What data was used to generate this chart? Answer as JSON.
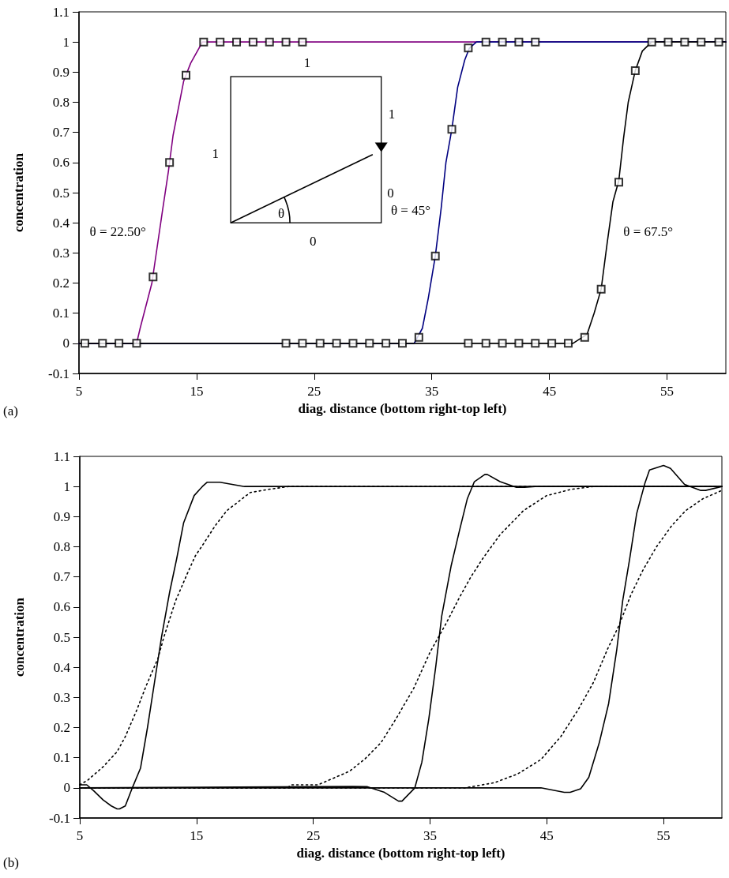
{
  "chart_data": [
    {
      "type": "line",
      "xlabel": "diag. distance (bottom right-top left)",
      "ylabel": "concentration",
      "xlim": [
        5,
        60
      ],
      "xticks": [
        5,
        15,
        25,
        35,
        45,
        55
      ],
      "ylim": [
        -0.1,
        1.1
      ],
      "yticks": [
        -0.1,
        0,
        0.1,
        0.2,
        0.3,
        0.4,
        0.5,
        0.6,
        0.7,
        0.8,
        0.9,
        1,
        1.1
      ],
      "annotations": [
        "θ = 22.50°",
        "θ = 45°",
        "θ = 67.5°",
        "1",
        "1",
        "1",
        "0",
        "0",
        "θ",
        "(a)"
      ],
      "series": [
        {
          "color": "#800080",
          "marker": "none",
          "line_style": "solid",
          "x": [
            5,
            9.9,
            10.2,
            11.2,
            12.1,
            12.6,
            13.0,
            13.9,
            14.5,
            15.5,
            60
          ],
          "values": [
            0,
            0,
            0.05,
            0.2,
            0.44,
            0.57,
            0.69,
            0.87,
            0.93,
            1,
            1
          ]
        },
        {
          "color": "#000080",
          "marker": "none",
          "line_style": "solid",
          "x": [
            5,
            33.5,
            34.2,
            34.7,
            35.3,
            35.8,
            36.2,
            36.7,
            37.2,
            37.8,
            38.2,
            38.8,
            60
          ],
          "values": [
            0,
            0,
            0.05,
            0.15,
            0.29,
            0.45,
            0.6,
            0.71,
            0.85,
            0.94,
            0.98,
            1,
            1
          ]
        },
        {
          "color": "#000000",
          "marker": "none",
          "line_style": "solid",
          "x": [
            5,
            47,
            48.2,
            48.8,
            49.4,
            49.9,
            50.4,
            50.9,
            51.3,
            51.7,
            52.3,
            52.9,
            53.7,
            60
          ],
          "values": [
            0,
            0,
            0.03,
            0.1,
            0.18,
            0.33,
            0.47,
            0.54,
            0.68,
            0.8,
            0.905,
            0.97,
            1,
            1
          ]
        },
        {
          "type": "scatter",
          "color": "#000000",
          "marker": "square",
          "x": [
            5.5,
            7.0,
            8.4,
            9.9,
            11.3,
            12.7,
            14.1,
            15.6,
            17.0,
            18.4,
            19.8,
            21.2,
            22.6,
            24.0
          ],
          "values": [
            0,
            0,
            0,
            0,
            0.22,
            0.6,
            0.89,
            1,
            1,
            1,
            1,
            1,
            1,
            1
          ]
        },
        {
          "type": "scatter",
          "color": "#000000",
          "marker": "square",
          "x": [
            22.6,
            24.0,
            25.5,
            26.9,
            28.3,
            29.7,
            31.1,
            32.5,
            33.9,
            35.3,
            36.7,
            38.1,
            39.6,
            41.0,
            42.4,
            43.8
          ],
          "values": [
            0,
            0,
            0,
            0,
            0,
            0,
            0,
            0,
            0.02,
            0.29,
            0.71,
            0.98,
            1,
            1,
            1,
            1
          ]
        },
        {
          "type": "scatter",
          "color": "#000000",
          "marker": "square",
          "x": [
            38.1,
            39.6,
            41.0,
            42.4,
            43.8,
            45.2,
            46.6,
            48.0,
            49.4,
            50.9,
            52.3,
            53.7,
            55.1,
            56.5,
            57.9,
            59.4
          ],
          "values": [
            0,
            0,
            0,
            0,
            0,
            0,
            0,
            0.02,
            0.18,
            0.535,
            0.905,
            1,
            1,
            1,
            1,
            1
          ]
        }
      ]
    },
    {
      "type": "line",
      "xlabel": "diag. distance (bottom right-top left)",
      "ylabel": "concentration",
      "xlim": [
        5,
        60
      ],
      "xticks": [
        5,
        15,
        25,
        35,
        45,
        55
      ],
      "ylim": [
        -0.1,
        1.1
      ],
      "yticks": [
        -0.1,
        0,
        0.1,
        0.2,
        0.3,
        0.4,
        0.5,
        0.6,
        0.7,
        0.8,
        0.9,
        1,
        1.1
      ],
      "annotations": [
        "(b)"
      ],
      "series": [
        {
          "color": "#000000",
          "marker": "none",
          "line_style": "solid",
          "x": [
            5,
            5.6,
            6.2,
            7.0,
            7.7,
            8.2,
            8.4,
            8.9,
            9.5,
            10.2,
            10.8,
            11.4,
            12.0,
            12.7,
            13.3,
            13.9,
            14.8,
            15.5,
            15.9,
            17.0,
            19.1,
            60
          ],
          "values": [
            0.01,
            0.01,
            -0.01,
            -0.04,
            -0.06,
            -0.07,
            -0.07,
            -0.06,
            0,
            0.065,
            0.2,
            0.35,
            0.5,
            0.65,
            0.76,
            0.88,
            0.97,
            1.0,
            1.014,
            1.014,
            1.0,
            1.0
          ]
        },
        {
          "color": "#000000",
          "marker": "none",
          "line_style": "solid",
          "x": [
            5,
            28.4,
            29.6,
            31.1,
            32.3,
            32.6,
            33.7,
            34.3,
            34.9,
            35.5,
            36.0,
            36.8,
            37.5,
            38.2,
            38.8,
            39.7,
            39.9,
            41.0,
            42.4,
            43.1,
            44.0,
            60
          ],
          "values": [
            0,
            0.005,
            0.004,
            -0.015,
            -0.044,
            -0.044,
            0,
            0.085,
            0.23,
            0.405,
            0.57,
            0.735,
            0.85,
            0.96,
            1.016,
            1.04,
            1.04,
            1.016,
            0.997,
            0.997,
            1.0,
            1.0
          ]
        },
        {
          "color": "#000000",
          "marker": "none",
          "line_style": "solid",
          "x": [
            5,
            44.5,
            46.5,
            47.0,
            47.9,
            48.6,
            49.5,
            50.3,
            51.0,
            51.5,
            52.1,
            52.7,
            53.4,
            53.8,
            55.0,
            55.6,
            56.8,
            58.2,
            58.6,
            60
          ],
          "values": [
            0,
            0,
            -0.015,
            -0.015,
            -0.003,
            0.035,
            0.15,
            0.28,
            0.46,
            0.62,
            0.76,
            0.91,
            1.01,
            1.055,
            1.07,
            1.06,
            1.007,
            0.987,
            0.987,
            1.0
          ]
        },
        {
          "color": "#000000",
          "marker": "none",
          "line_style": "dotted",
          "x": [
            5,
            5.7,
            7.0,
            8.2,
            8.9,
            9.9,
            10.7,
            11.7,
            12.2,
            13.2,
            14.2,
            14.9,
            15.6,
            16.6,
            17.6,
            18.6,
            19.6,
            21.1,
            22.9,
            60
          ],
          "values": [
            0.01,
            0.026,
            0.07,
            0.12,
            0.17,
            0.26,
            0.34,
            0.43,
            0.5,
            0.62,
            0.71,
            0.77,
            0.81,
            0.87,
            0.92,
            0.95,
            0.98,
            0.99,
            1.0,
            1.0
          ]
        },
        {
          "color": "#000000",
          "marker": "none",
          "line_style": "dotted",
          "x": [
            5,
            22.8,
            23.1,
            25.4,
            28.1,
            29.4,
            30.8,
            32.1,
            33.6,
            35.0,
            36.3,
            37.5,
            38.5,
            39.5,
            41.0,
            43.0,
            45.0,
            47.0,
            49.0,
            60
          ],
          "values": [
            0,
            0,
            0.01,
            0.01,
            0.055,
            0.095,
            0.15,
            0.23,
            0.33,
            0.45,
            0.54,
            0.63,
            0.7,
            0.76,
            0.84,
            0.92,
            0.97,
            0.99,
            1.0,
            1.0
          ]
        },
        {
          "color": "#000000",
          "marker": "none",
          "line_style": "dotted",
          "x": [
            5,
            38.0,
            40.5,
            42.5,
            44.5,
            46.2,
            47.7,
            49.0,
            50.2,
            51.2,
            52.2,
            53.2,
            54.4,
            55.7,
            56.9,
            58.4,
            60
          ],
          "values": [
            0,
            0,
            0.017,
            0.046,
            0.094,
            0.17,
            0.26,
            0.35,
            0.46,
            0.54,
            0.64,
            0.72,
            0.8,
            0.87,
            0.92,
            0.96,
            0.987
          ]
        }
      ]
    }
  ]
}
